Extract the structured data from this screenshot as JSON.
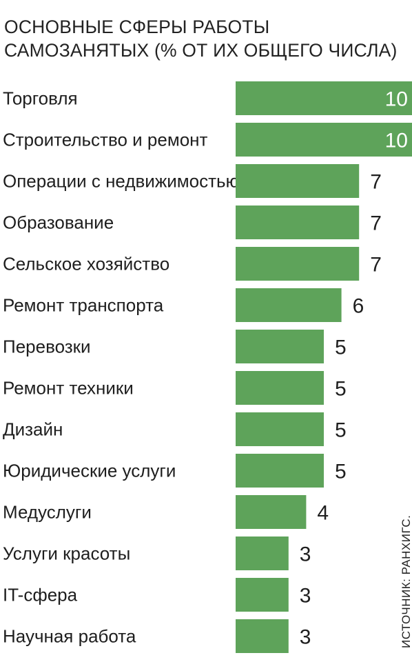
{
  "title_line1": "ОСНОВНЫЕ СФЕРЫ РАБОТЫ",
  "title_line2": "САМОЗАНЯТЫХ (% ОТ ИХ ОБЩЕГО ЧИСЛА)",
  "source": "ИСТОЧНИК: РАНХИГС.",
  "colors": {
    "bar": "#5ea35a",
    "background": "#ffffff",
    "text": "#1e1e1e",
    "value_inside": "#ffffff"
  },
  "chart_data": {
    "type": "bar",
    "orientation": "horizontal",
    "title": "ОСНОВНЫЕ СФЕРЫ РАБОТЫ САМОЗАНЯТЫХ (% ОТ ИХ ОБЩЕГО ЧИСЛА)",
    "xlabel": "",
    "ylabel": "",
    "xlim": [
      0,
      10
    ],
    "grid": false,
    "legend": "none",
    "categories": [
      "Торговля",
      "Строительство и ремонт",
      "Операции с недвижимостью",
      "Образование",
      "Сельское хозяйство",
      "Ремонт транспорта",
      "Перевозки",
      "Ремонт техники",
      "Дизайн",
      "Юридические услуги",
      "Медуслуги",
      "Услуги красоты",
      "IT-сфера",
      "Научная работа"
    ],
    "values": [
      10,
      10,
      7,
      7,
      7,
      6,
      5,
      5,
      5,
      5,
      4,
      3,
      3,
      3
    ],
    "value_labels": [
      "10",
      "10",
      "7",
      "7",
      "7",
      "6",
      "5",
      "5",
      "5",
      "5",
      "4",
      "3",
      "3",
      "3"
    ]
  }
}
